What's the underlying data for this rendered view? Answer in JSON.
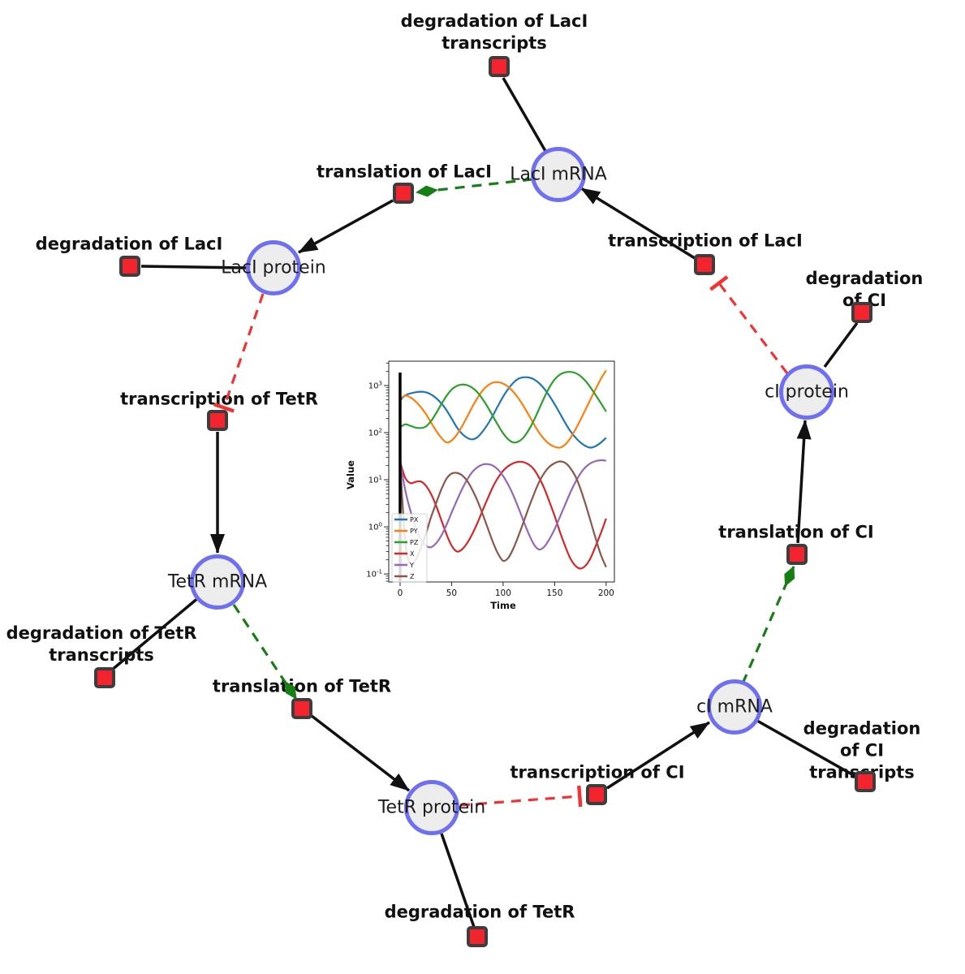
{
  "diagram": {
    "species": [
      {
        "label": "LacI mRNA"
      },
      {
        "label": "LacI protein"
      },
      {
        "label": "TetR mRNA"
      },
      {
        "label": "TetR protein"
      },
      {
        "label": "cI mRNA"
      },
      {
        "label": "cI protein"
      }
    ],
    "reactions": [
      {
        "label": "degradation of LacI\ntranscripts"
      },
      {
        "label": "translation of LacI"
      },
      {
        "label": "transcription of LacI"
      },
      {
        "label": "degradation of LacI"
      },
      {
        "label": "degradation of CI"
      },
      {
        "label": "transcription of TetR"
      },
      {
        "label": "translation of CI"
      },
      {
        "label": "degradation of TetR\ntranscripts"
      },
      {
        "label": "translation of TetR"
      },
      {
        "label": "degradation of CI\ntranscripts"
      },
      {
        "label": "transcription of CI"
      },
      {
        "label": "degradation of TetR"
      }
    ],
    "node_colors": {
      "species_fill": "#ededed",
      "species_border": "#6f6ff2",
      "reaction_fill": "#f3242e",
      "reaction_border": "#3d3d3d"
    },
    "edge_colors": {
      "reaction": "#111111",
      "activation": "#157f15",
      "inhibition": "#f23333"
    }
  },
  "chart_data": {
    "type": "line",
    "title": "",
    "xlabel": "Time",
    "ylabel": "Value",
    "yscale": "log",
    "grid": false,
    "legend_position": "lower left",
    "xlim": [
      -11,
      208
    ],
    "ylim_log10": [
      -1.17,
      3.517
    ],
    "x_ticks": [
      0,
      50,
      100,
      150,
      200
    ],
    "y_tick_exponents": [
      3,
      2,
      1,
      0,
      -1
    ],
    "axvline_x": 0,
    "x": [
      0,
      5,
      10,
      15,
      20,
      25,
      30,
      35,
      40,
      45,
      50,
      55,
      60,
      65,
      70,
      75,
      80,
      85,
      90,
      95,
      100,
      105,
      110,
      115,
      120,
      125,
      130,
      135,
      140,
      145,
      150,
      155,
      160,
      165,
      170,
      175,
      180,
      185,
      190,
      195,
      200
    ],
    "series": [
      {
        "name": "PX",
        "color": "#1f77b4",
        "values": [
          480,
          620,
          680,
          720,
          740,
          720,
          650,
          540,
          420,
          300,
          200,
          130,
          95,
          78,
          72,
          80,
          105,
          150,
          230,
          370,
          580,
          850,
          1150,
          1400,
          1500,
          1480,
          1350,
          1120,
          850,
          600,
          400,
          260,
          165,
          110,
          80,
          62,
          52,
          48,
          52,
          62,
          78
        ]
      },
      {
        "name": "PY",
        "color": "#ff7f0e",
        "values": [
          520,
          610,
          560,
          460,
          350,
          250,
          165,
          110,
          78,
          62,
          68,
          90,
          135,
          215,
          350,
          540,
          780,
          1000,
          1150,
          1180,
          1100,
          940,
          730,
          530,
          360,
          235,
          150,
          100,
          72,
          57,
          50,
          48,
          55,
          75,
          115,
          185,
          310,
          520,
          860,
          1400,
          2100
        ]
      },
      {
        "name": "PZ",
        "color": "#2ca02c",
        "values": [
          130,
          150,
          140,
          128,
          125,
          135,
          175,
          260,
          400,
          600,
          820,
          980,
          1050,
          1020,
          900,
          720,
          520,
          350,
          225,
          145,
          97,
          72,
          62,
          65,
          80,
          115,
          185,
          320,
          560,
          920,
          1350,
          1700,
          1900,
          1950,
          1850,
          1600,
          1250,
          900,
          620,
          420,
          280
        ]
      },
      {
        "name": "X",
        "color": "#d62728",
        "values": [
          24,
          11,
          8.5,
          9,
          9.2,
          7.5,
          5,
          2.8,
          1.4,
          0.7,
          0.4,
          0.3,
          0.33,
          0.45,
          0.7,
          1.2,
          2.2,
          4,
          7,
          11,
          15.5,
          19.5,
          22.5,
          24,
          23.5,
          21,
          16.5,
          11,
          6.5,
          3.4,
          1.7,
          0.8,
          0.4,
          0.22,
          0.15,
          0.13,
          0.15,
          0.22,
          0.4,
          0.75,
          1.5
        ]
      },
      {
        "name": "Y",
        "color": "#9467bd",
        "values": [
          24,
          6,
          2.2,
          1,
          0.55,
          0.4,
          0.37,
          0.45,
          0.65,
          1.1,
          2,
          3.6,
          6.2,
          10,
          14.5,
          18.5,
          21,
          21.5,
          20,
          16.5,
          12,
          7.8,
          4.6,
          2.5,
          1.3,
          0.7,
          0.42,
          0.33,
          0.38,
          0.55,
          0.9,
          1.6,
          2.9,
          5.2,
          8.8,
          13.5,
          18.5,
          22.5,
          25,
          26,
          25.5
        ]
      },
      {
        "name": "Z",
        "color": "#8c564b",
        "values": [
          23,
          0.5,
          0.16,
          0.2,
          0.35,
          0.7,
          1.6,
          3.2,
          6.2,
          10.5,
          13.5,
          14,
          12.5,
          9.5,
          6.2,
          3.6,
          1.9,
          0.95,
          0.48,
          0.27,
          0.19,
          0.22,
          0.35,
          0.65,
          1.3,
          2.6,
          5,
          9,
          14,
          19,
          22.5,
          24.5,
          23,
          18,
          12,
          6.5,
          3,
          1.3,
          0.55,
          0.25,
          0.14
        ]
      }
    ]
  }
}
